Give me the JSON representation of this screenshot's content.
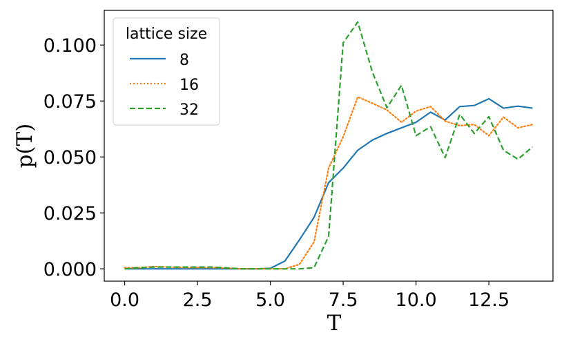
{
  "chart_data": {
    "type": "line",
    "title": "",
    "xlabel": "T",
    "ylabel": "p(T)",
    "xlim": [
      -0.7,
      14.7
    ],
    "ylim": [
      -0.0055,
      0.1155
    ],
    "xticks": [
      0.0,
      2.5,
      5.0,
      7.5,
      10.0,
      12.5
    ],
    "xtick_labels": [
      "0.0",
      "2.5",
      "5.0",
      "7.5",
      "10.0",
      "12.5"
    ],
    "yticks": [
      0.0,
      0.025,
      0.05,
      0.075,
      0.1
    ],
    "ytick_labels": [
      "0.000",
      "0.025",
      "0.050",
      "0.075",
      "0.100"
    ],
    "legend": {
      "title": "lattice size",
      "position": "upper-left"
    },
    "x": [
      0.0,
      0.5,
      1.0,
      1.5,
      2.0,
      2.5,
      3.0,
      3.5,
      4.0,
      4.5,
      5.0,
      5.5,
      6.0,
      6.5,
      7.0,
      7.5,
      8.0,
      8.5,
      9.0,
      9.5,
      10.0,
      10.5,
      11.0,
      11.5,
      12.0,
      12.5,
      13.0,
      13.5,
      14.0
    ],
    "series": [
      {
        "name": "8",
        "color": "#1f77b4",
        "style": "solid",
        "values": [
          0.0,
          0.0,
          0.0,
          0.0,
          0.0,
          0.0,
          0.0,
          0.0,
          0.0,
          0.0,
          0.0002,
          0.0035,
          0.013,
          0.023,
          0.0385,
          0.045,
          0.053,
          0.0575,
          0.0605,
          0.063,
          0.0655,
          0.07,
          0.0665,
          0.0725,
          0.073,
          0.076,
          0.0718,
          0.0727,
          0.0718
        ]
      },
      {
        "name": "16",
        "color": "#ff7f0e",
        "style": "dotted",
        "values": [
          0.0005,
          0.0005,
          0.001,
          0.0008,
          0.0006,
          0.0006,
          0.0006,
          0.0004,
          0.0,
          0.0,
          0.0,
          0.0,
          0.002,
          0.012,
          0.045,
          0.059,
          0.0768,
          0.074,
          0.071,
          0.0655,
          0.0705,
          0.0725,
          0.066,
          0.064,
          0.0645,
          0.0595,
          0.0678,
          0.063,
          0.0645
        ]
      },
      {
        "name": "32",
        "color": "#2ca02c",
        "style": "dashed",
        "values": [
          0.0,
          0.0005,
          0.0008,
          0.0008,
          0.0008,
          0.0008,
          0.0008,
          0.0004,
          0.0,
          0.0,
          0.0,
          0.0,
          0.0,
          0.0005,
          0.0145,
          0.101,
          0.1103,
          0.088,
          0.072,
          0.082,
          0.0595,
          0.0635,
          0.0497,
          0.069,
          0.0605,
          0.068,
          0.053,
          0.049,
          0.0545
        ]
      }
    ]
  }
}
